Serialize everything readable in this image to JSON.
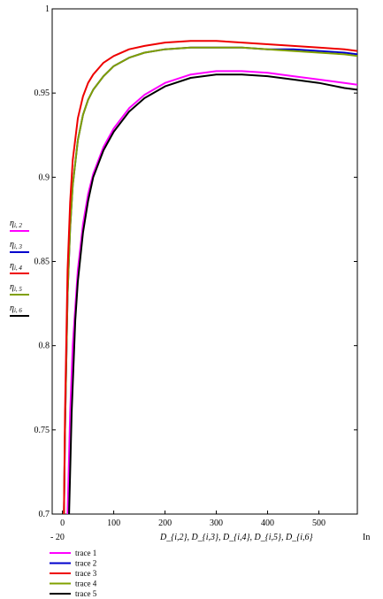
{
  "chart_data": {
    "type": "line",
    "title": "",
    "xlabel": "D_{i,2}, D_{i,3}, D_{i,4}, D_{i,5}, D_{i,6}",
    "ylabel": "",
    "xlim": [
      -20,
      575
    ],
    "ylim": [
      0.7,
      1.0
    ],
    "x_min_label": "- 20",
    "x_max_label": "In",
    "x_ticks": [
      0,
      100,
      200,
      300,
      400,
      500
    ],
    "x_tick_labels": [
      "0",
      "100",
      "200",
      "300",
      "400",
      "500"
    ],
    "y_ticks": [
      0.7,
      0.75,
      0.8,
      0.85,
      0.9,
      0.95,
      1.0
    ],
    "y_tick_labels": [
      "0.7",
      "0.75",
      "0.8",
      "0.85",
      "0.9",
      "0.95",
      "1"
    ],
    "grid": false,
    "legend_position": "bottom-left",
    "left_labels": [
      {
        "base": "η",
        "sub": "i, 2",
        "color": "#ff00ff"
      },
      {
        "base": "η",
        "sub": "i, 3",
        "color": "#0000cc"
      },
      {
        "base": "η",
        "sub": "i, 4",
        "color": "#ee0000"
      },
      {
        "base": "η",
        "sub": "i, 5",
        "color": "#80a000"
      },
      {
        "base": "η",
        "sub": "i, 6",
        "color": "#000000"
      }
    ],
    "series": [
      {
        "name": "trace 1",
        "color": "#ff00ff",
        "x": [
          10,
          15,
          20,
          30,
          40,
          50,
          60,
          80,
          100,
          130,
          160,
          200,
          250,
          300,
          350,
          400,
          450,
          500,
          550,
          575
        ],
        "y": [
          0.7,
          0.76,
          0.8,
          0.845,
          0.872,
          0.89,
          0.902,
          0.918,
          0.929,
          0.941,
          0.949,
          0.956,
          0.961,
          0.963,
          0.963,
          0.962,
          0.96,
          0.958,
          0.956,
          0.955
        ]
      },
      {
        "name": "trace 2",
        "color": "#0000cc",
        "x": [
          3,
          5,
          10,
          15,
          20,
          30,
          40,
          50,
          60,
          80,
          100,
          130,
          160,
          200,
          250,
          300,
          350,
          400,
          450,
          500,
          550,
          575
        ],
        "y": [
          0.7,
          0.75,
          0.83,
          0.87,
          0.895,
          0.922,
          0.937,
          0.946,
          0.952,
          0.96,
          0.966,
          0.971,
          0.974,
          0.976,
          0.977,
          0.977,
          0.977,
          0.976,
          0.976,
          0.975,
          0.974,
          0.973
        ]
      },
      {
        "name": "trace 3",
        "color": "#ee0000",
        "x": [
          3,
          5,
          10,
          15,
          20,
          30,
          40,
          50,
          60,
          80,
          100,
          130,
          160,
          200,
          250,
          300,
          350,
          400,
          450,
          500,
          550,
          575
        ],
        "y": [
          0.7,
          0.76,
          0.845,
          0.885,
          0.91,
          0.935,
          0.948,
          0.956,
          0.961,
          0.968,
          0.972,
          0.976,
          0.978,
          0.98,
          0.981,
          0.981,
          0.98,
          0.979,
          0.978,
          0.977,
          0.976,
          0.975
        ]
      },
      {
        "name": "trace 4",
        "color": "#80a000",
        "x": [
          3,
          5,
          10,
          15,
          20,
          30,
          40,
          50,
          60,
          80,
          100,
          130,
          160,
          200,
          250,
          300,
          350,
          400,
          450,
          500,
          550,
          575
        ],
        "y": [
          0.7,
          0.75,
          0.83,
          0.87,
          0.895,
          0.922,
          0.937,
          0.946,
          0.952,
          0.96,
          0.966,
          0.971,
          0.974,
          0.976,
          0.977,
          0.977,
          0.977,
          0.976,
          0.975,
          0.974,
          0.973,
          0.972
        ]
      },
      {
        "name": "trace 5",
        "color": "#000000",
        "x": [
          13,
          18,
          25,
          30,
          40,
          50,
          60,
          80,
          100,
          130,
          160,
          200,
          250,
          300,
          350,
          400,
          450,
          500,
          550,
          575
        ],
        "y": [
          0.7,
          0.76,
          0.815,
          0.838,
          0.867,
          0.886,
          0.9,
          0.916,
          0.927,
          0.939,
          0.947,
          0.954,
          0.959,
          0.961,
          0.961,
          0.96,
          0.958,
          0.956,
          0.953,
          0.952
        ]
      }
    ]
  }
}
